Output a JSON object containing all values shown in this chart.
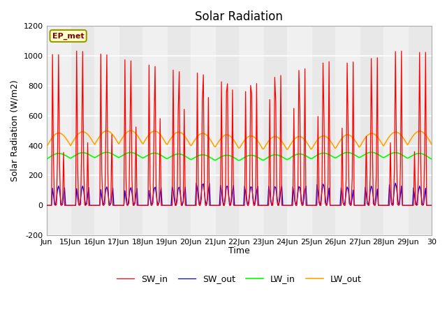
{
  "title": "Solar Radiation",
  "ylabel": "Solar Radiation (W/m2)",
  "xlabel": "Time",
  "ylim": [
    -200,
    1200
  ],
  "xlim": [
    0,
    16
  ],
  "yticks": [
    -200,
    0,
    200,
    400,
    600,
    800,
    1000,
    1200
  ],
  "xtick_labels": [
    "Jun",
    "15Jun",
    "16Jun",
    "17Jun",
    "18Jun",
    "19Jun",
    "20Jun",
    "21Jun",
    "22Jun",
    "23Jun",
    "24Jun",
    "25Jun",
    "26Jun",
    "27Jun",
    "28Jun",
    "29Jun",
    "30"
  ],
  "xtick_positions": [
    0,
    1,
    2,
    3,
    4,
    5,
    6,
    7,
    8,
    9,
    10,
    11,
    12,
    13,
    14,
    15,
    16
  ],
  "label_ep": "EP_met",
  "series": [
    "SW_in",
    "SW_out",
    "LW_in",
    "LW_out"
  ],
  "colors": [
    "red",
    "blue",
    "#00ff00",
    "orange"
  ],
  "background_color": "#e8e8e8",
  "band_color": "#d0d0d0",
  "white_band_color": "#f0f0f0",
  "title_fontsize": 12,
  "label_fontsize": 9,
  "tick_fontsize": 8
}
